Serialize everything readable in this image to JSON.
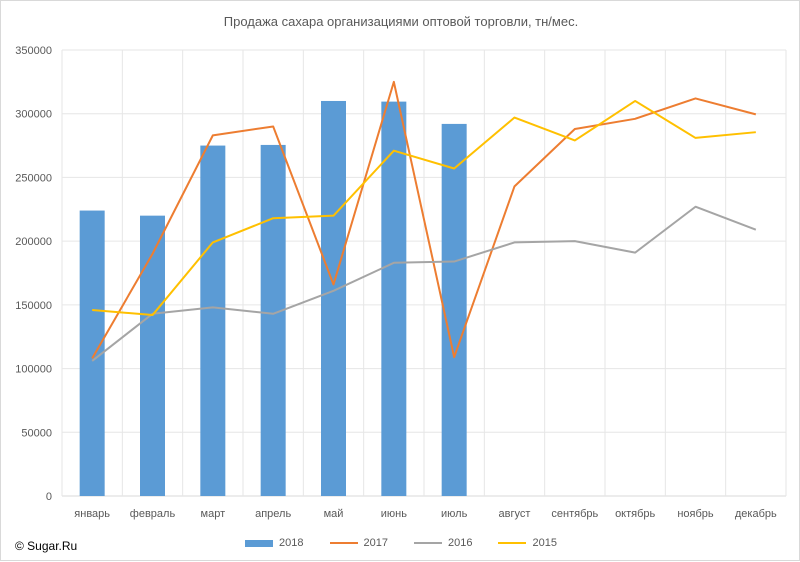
{
  "chart_data": {
    "type": "bar",
    "title": "Продажа сахара организациями оптовой торговли, тн/мес.",
    "categories": [
      "январь",
      "февраль",
      "март",
      "апрель",
      "май",
      "июнь",
      "июль",
      "август",
      "сентябрь",
      "октябрь",
      "ноябрь",
      "декабрь"
    ],
    "ylim": [
      0,
      350000
    ],
    "yticks": [
      "0",
      "50000",
      "100000",
      "150000",
      "200000",
      "250000",
      "300000",
      "350000"
    ],
    "ytick_values": [
      0,
      50000,
      100000,
      150000,
      200000,
      250000,
      300000,
      350000
    ],
    "grid": "on",
    "legend_position": "bottom",
    "series": [
      {
        "name": "2018",
        "type": "bar",
        "color": "#5b9bd5",
        "values": [
          224000,
          220000,
          275000,
          275500,
          310000,
          309500,
          292000,
          null,
          null,
          null,
          null,
          null
        ]
      },
      {
        "name": "2017",
        "type": "line",
        "color": "#ed7d31",
        "values": [
          108000,
          190000,
          283000,
          290000,
          166000,
          325000,
          109000,
          243000,
          288000,
          296000,
          312000,
          299500
        ]
      },
      {
        "name": "2016",
        "type": "line",
        "color": "#a5a5a5",
        "values": [
          106000,
          143000,
          148000,
          143000,
          161000,
          183000,
          184000,
          199000,
          200000,
          191000,
          227000,
          209000
        ]
      },
      {
        "name": "2015",
        "type": "line",
        "color": "#ffc000",
        "values": [
          146000,
          142000,
          199000,
          218000,
          220000,
          271000,
          257000,
          297000,
          279000,
          310000,
          281000,
          285500
        ]
      }
    ]
  },
  "credit": "© Sugar.Ru"
}
